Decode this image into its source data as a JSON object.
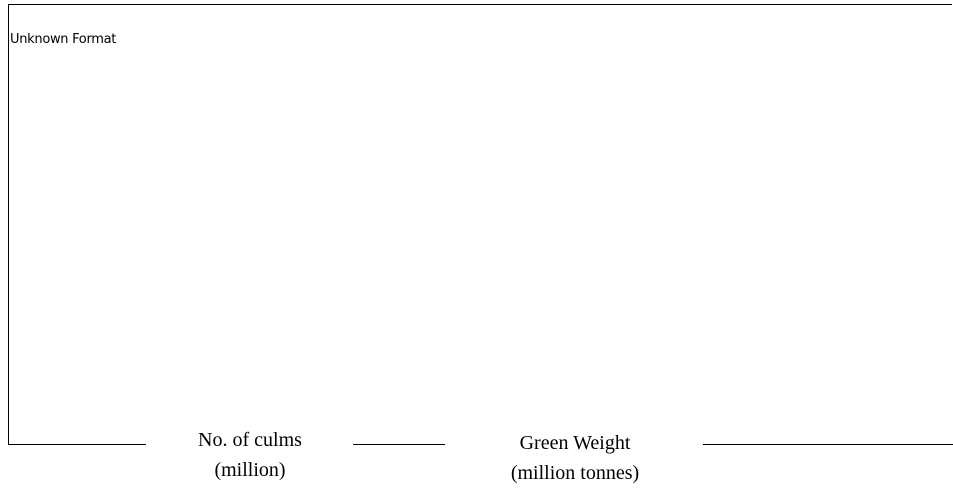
{
  "placeholder": {
    "text": "Unknown Format"
  },
  "columns": [
    {
      "line1": "No. of culms",
      "line2": "(million)"
    },
    {
      "line1": "Green Weight",
      "line2": "(million tonnes)"
    }
  ]
}
